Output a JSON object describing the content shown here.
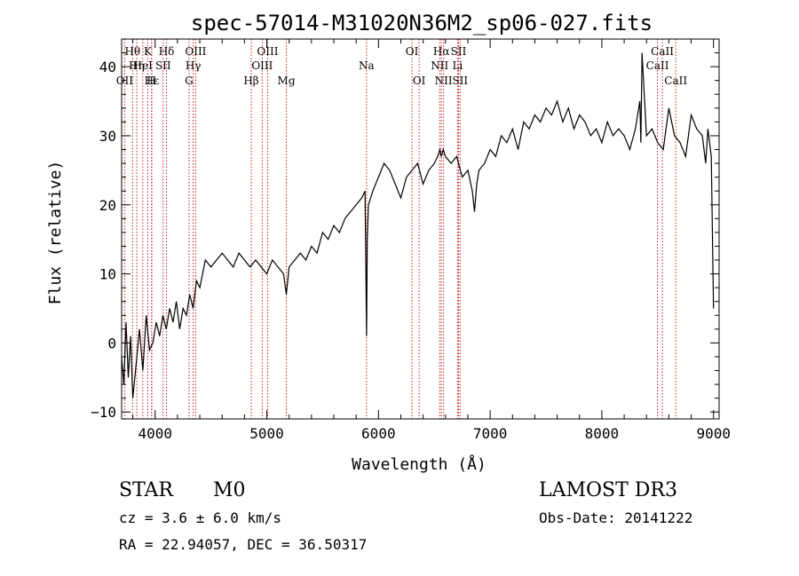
{
  "chart_data": {
    "type": "line",
    "title": "spec-57014-M31020N36M2_sp06-027.fits",
    "xlabel": "Wavelength (Å)",
    "ylabel": "Flux (relative)",
    "xlim": [
      3700,
      9050
    ],
    "ylim": [
      -11,
      44
    ],
    "xticks": [
      4000,
      5000,
      6000,
      7000,
      8000,
      9000
    ],
    "xtick_labels": [
      "4000",
      "5000",
      "6000",
      "7000",
      "8000",
      "9000"
    ],
    "yticks": [
      -10,
      0,
      10,
      20,
      30,
      40
    ],
    "ytick_labels": [
      "−10",
      "0",
      "10",
      "20",
      "30",
      "40"
    ],
    "series": [
      {
        "name": "flux",
        "x": [
          3700,
          3720,
          3740,
          3760,
          3780,
          3800,
          3830,
          3860,
          3890,
          3920,
          3950,
          3980,
          4010,
          4040,
          4070,
          4100,
          4130,
          4160,
          4190,
          4220,
          4250,
          4280,
          4310,
          4340,
          4370,
          4400,
          4450,
          4500,
          4550,
          4600,
          4650,
          4700,
          4750,
          4800,
          4850,
          4900,
          4950,
          5000,
          5050,
          5100,
          5150,
          5175,
          5200,
          5250,
          5300,
          5350,
          5400,
          5450,
          5500,
          5550,
          5600,
          5650,
          5700,
          5750,
          5800,
          5850,
          5880,
          5893,
          5900,
          5910,
          5950,
          6000,
          6050,
          6100,
          6150,
          6200,
          6250,
          6300,
          6350,
          6400,
          6450,
          6500,
          6530,
          6550,
          6563,
          6580,
          6600,
          6650,
          6700,
          6750,
          6800,
          6840,
          6860,
          6880,
          6900,
          6950,
          7000,
          7050,
          7100,
          7150,
          7200,
          7250,
          7300,
          7350,
          7400,
          7450,
          7500,
          7550,
          7600,
          7650,
          7700,
          7750,
          7800,
          7850,
          7900,
          7950,
          8000,
          8050,
          8100,
          8150,
          8200,
          8250,
          8300,
          8340,
          8350,
          8360,
          8400,
          8450,
          8500,
          8550,
          8600,
          8650,
          8700,
          8750,
          8800,
          8850,
          8900,
          8930,
          8950,
          8980,
          9000
        ],
        "y": [
          -2,
          -6,
          3,
          -5,
          1,
          -8,
          -3,
          2,
          -4,
          4,
          -1,
          0,
          3,
          1,
          4,
          2,
          5,
          3,
          6,
          2,
          5,
          4,
          7,
          5,
          9,
          8,
          12,
          11,
          12,
          13,
          12,
          11,
          13,
          12,
          11,
          12,
          11,
          10,
          12,
          11,
          10,
          7,
          11,
          12,
          13,
          12,
          14,
          13,
          16,
          15,
          17,
          16,
          18,
          19,
          20,
          21,
          22,
          1,
          15,
          20,
          22,
          24,
          26,
          25,
          23,
          21,
          24,
          25,
          26,
          23,
          25,
          26,
          27,
          28,
          27,
          28,
          27,
          26,
          27,
          24,
          25,
          22,
          19,
          23,
          25,
          26,
          28,
          27,
          30,
          29,
          31,
          28,
          32,
          31,
          33,
          32,
          34,
          33,
          35,
          32,
          34,
          31,
          33,
          32,
          30,
          31,
          29,
          32,
          30,
          31,
          30,
          28,
          31,
          35,
          29,
          42,
          30,
          31,
          29,
          28,
          34,
          30,
          29,
          27,
          33,
          31,
          30,
          26,
          31,
          27,
          5
        ]
      }
    ],
    "emission_lines": [
      {
        "label": "Hθ",
        "x": 3798,
        "row": 1
      },
      {
        "label": "OII",
        "x": 3727,
        "row": 3
      },
      {
        "label": "Hη",
        "x": 3835,
        "row": 2
      },
      {
        "label": "HeI",
        "x": 3889,
        "row": 2
      },
      {
        "label": "Hε",
        "x": 3970,
        "row": 3
      },
      {
        "label": "K",
        "x": 3934,
        "row": 1
      },
      {
        "label": "H",
        "x": 3968,
        "row": 3
      },
      {
        "label": "SII",
        "x": 4072,
        "row": 2
      },
      {
        "label": "Hδ",
        "x": 4102,
        "row": 1
      },
      {
        "label": "OIII",
        "x": 4363,
        "row": 1
      },
      {
        "label": "Hγ",
        "x": 4341,
        "row": 2
      },
      {
        "label": "G",
        "x": 4304,
        "row": 3
      },
      {
        "label": "Hβ",
        "x": 4861,
        "row": 3
      },
      {
        "label": "OIII",
        "x": 5007,
        "row": 1
      },
      {
        "label": "OIII",
        "x": 4959,
        "row": 2
      },
      {
        "label": "Mg",
        "x": 5175,
        "row": 3
      },
      {
        "label": "Na",
        "x": 5893,
        "row": 2
      },
      {
        "label": "OI",
        "x": 6300,
        "row": 1
      },
      {
        "label": "OI",
        "x": 6364,
        "row": 3
      },
      {
        "label": "Hα",
        "x": 6563,
        "row": 1
      },
      {
        "label": "SII",
        "x": 6717,
        "row": 1
      },
      {
        "label": "NII",
        "x": 6548,
        "row": 2
      },
      {
        "label": "Li",
        "x": 6708,
        "row": 2
      },
      {
        "label": "NII",
        "x": 6583,
        "row": 3
      },
      {
        "label": "SII",
        "x": 6731,
        "row": 3
      },
      {
        "label": "CaII",
        "x": 8542,
        "row": 1
      },
      {
        "label": "CaII",
        "x": 8498,
        "row": 2
      },
      {
        "label": "CaII",
        "x": 8662,
        "row": 3
      }
    ]
  },
  "info": {
    "class": "STAR",
    "subclass": "M0",
    "survey": "LAMOST DR3",
    "cz": "cz = 3.6 ± 6.0 km/s",
    "obs_date": "Obs-Date: 20141222",
    "radec": "RA =  22.94057, DEC =  36.50317"
  }
}
